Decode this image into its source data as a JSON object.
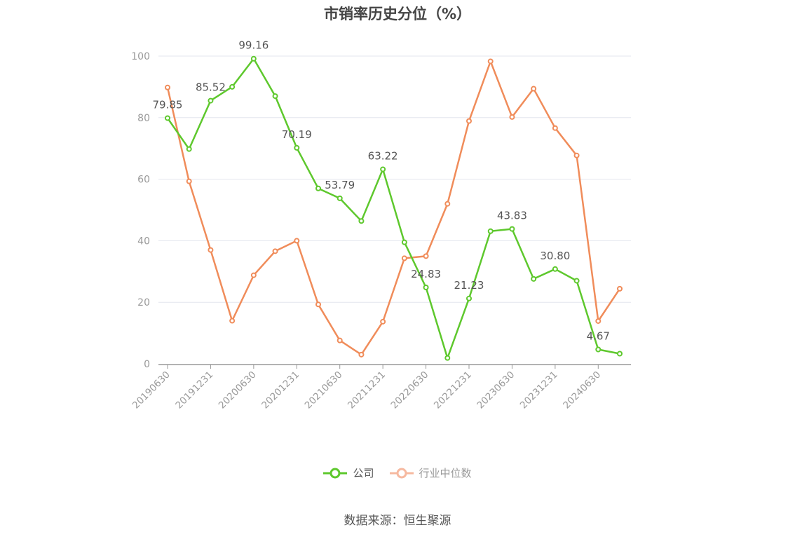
{
  "chart_data": {
    "type": "line",
    "title": "市销率历史分位（%）",
    "source": "数据来源：恒生聚源",
    "ylim": [
      0,
      100
    ],
    "yticks": [
      0,
      20,
      40,
      60,
      80,
      100
    ],
    "grid": true,
    "legend_position": "bottom",
    "x": [
      "20190630",
      "20190930",
      "20191231",
      "20200331",
      "20200630",
      "20200930",
      "20201231",
      "20210331",
      "20210630",
      "20210930",
      "20211231",
      "20220331",
      "20220630",
      "20220930",
      "20221231",
      "20230331",
      "20230630",
      "20230930",
      "20231231",
      "20240331",
      "20240630",
      "20240930"
    ],
    "xtick_labels": [
      "20190630",
      "20191231",
      "20200630",
      "20201231",
      "20210630",
      "20211231",
      "20220630",
      "20221231",
      "20230630",
      "20231231",
      "20240630"
    ],
    "series": [
      {
        "name": "公司",
        "color": "#5ec82d",
        "values": [
          79.85,
          69.8,
          85.52,
          90.0,
          99.16,
          87.0,
          70.19,
          57.0,
          53.79,
          46.4,
          63.22,
          39.5,
          24.83,
          1.9,
          21.23,
          43.1,
          43.83,
          27.6,
          30.8,
          27.0,
          4.67,
          3.3
        ],
        "labels": [
          {
            "index": 0,
            "text": "79.85"
          },
          {
            "index": 2,
            "text": "85.52"
          },
          {
            "index": 4,
            "text": "99.16"
          },
          {
            "index": 6,
            "text": "70.19"
          },
          {
            "index": 8,
            "text": "53.79"
          },
          {
            "index": 10,
            "text": "63.22"
          },
          {
            "index": 12,
            "text": "24.83"
          },
          {
            "index": 14,
            "text": "21.23"
          },
          {
            "index": 16,
            "text": "43.83"
          },
          {
            "index": 18,
            "text": "30.80"
          },
          {
            "index": 20,
            "text": "4.67"
          }
        ]
      },
      {
        "name": "行业中位数",
        "color": "#f08c5a",
        "legend_color": "#f6b9a0",
        "values": [
          89.8,
          59.3,
          37.0,
          14.0,
          28.8,
          36.6,
          40.0,
          19.3,
          7.6,
          3.0,
          13.7,
          34.3,
          35.0,
          52.0,
          78.9,
          98.3,
          80.2,
          89.4,
          76.6,
          67.7,
          13.9,
          24.4
        ]
      }
    ]
  }
}
